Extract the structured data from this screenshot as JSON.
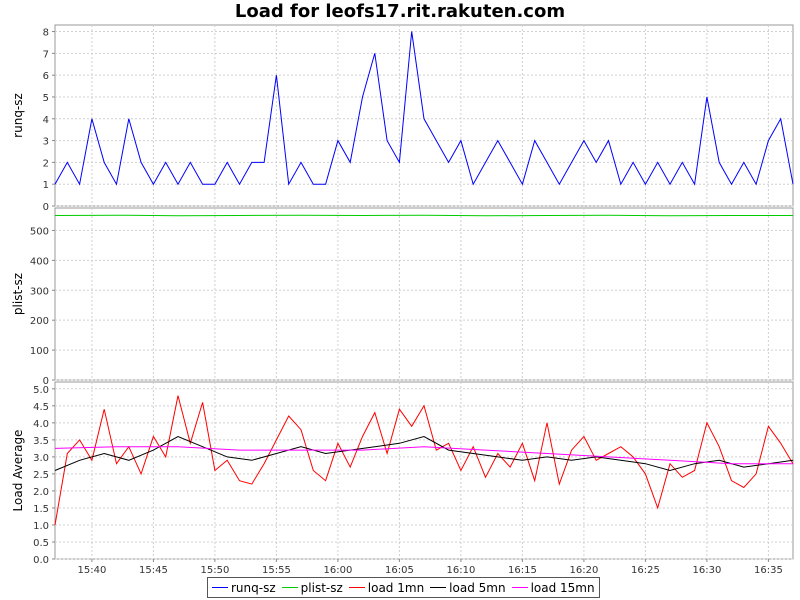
{
  "chart_data": {
    "type": "line",
    "title": "Load for leofs17.rit.rakuten.com",
    "x_ticks": [
      "15:40",
      "15:45",
      "15:50",
      "15:55",
      "16:00",
      "16:05",
      "16:10",
      "16:15",
      "16:20",
      "16:25",
      "16:30",
      "16:35"
    ],
    "x_range": [
      "15:37",
      "16:37"
    ],
    "grid": true,
    "legend_position": "bottom",
    "panels": [
      {
        "ylabel": "runq-sz",
        "ylim": [
          0,
          8.3
        ],
        "yticks": [
          0,
          1,
          2,
          3,
          4,
          5,
          6,
          7,
          8
        ],
        "series": [
          {
            "name": "runq-sz",
            "color": "#0000ff",
            "x": [
              "15:37",
              "15:38",
              "15:39",
              "15:40",
              "15:41",
              "15:42",
              "15:43",
              "15:44",
              "15:45",
              "15:46",
              "15:47",
              "15:48",
              "15:49",
              "15:50",
              "15:51",
              "15:52",
              "15:53",
              "15:54",
              "15:55",
              "15:56",
              "15:57",
              "15:58",
              "15:59",
              "16:00",
              "16:01",
              "16:02",
              "16:03",
              "16:04",
              "16:05",
              "16:06",
              "16:07",
              "16:08",
              "16:09",
              "16:10",
              "16:11",
              "16:12",
              "16:13",
              "16:14",
              "16:15",
              "16:16",
              "16:17",
              "16:18",
              "16:19",
              "16:20",
              "16:21",
              "16:22",
              "16:23",
              "16:24",
              "16:25",
              "16:26",
              "16:27",
              "16:28",
              "16:29",
              "16:30",
              "16:31",
              "16:32",
              "16:33",
              "16:34",
              "16:35",
              "16:36",
              "16:37"
            ],
            "values": [
              1,
              2,
              1,
              4,
              2,
              1,
              4,
              2,
              1,
              2,
              1,
              2,
              1,
              1,
              2,
              1,
              2,
              2,
              6,
              1,
              2,
              1,
              1,
              3,
              2,
              5,
              7,
              3,
              2,
              8,
              4,
              3,
              2,
              3,
              1,
              2,
              3,
              2,
              1,
              3,
              2,
              1,
              2,
              3,
              2,
              3,
              1,
              2,
              1,
              2,
              1,
              2,
              1,
              5,
              2,
              1,
              2,
              1,
              3,
              4,
              1
            ]
          }
        ]
      },
      {
        "ylabel": "plist-sz",
        "ylim": [
          0,
          575
        ],
        "yticks": [
          0,
          100,
          200,
          300,
          400,
          500
        ],
        "series": [
          {
            "name": "plist-sz",
            "color": "#00cc00",
            "x": [
              "15:37",
              "15:42",
              "15:47",
              "15:52",
              "15:57",
              "16:02",
              "16:07",
              "16:12",
              "16:17",
              "16:22",
              "16:27",
              "16:32",
              "16:37"
            ],
            "values": [
              550,
              551,
              549,
              550,
              551,
              550,
              551,
              549,
              550,
              551,
              549,
              550,
              550
            ]
          }
        ]
      },
      {
        "ylabel": "Load Average",
        "ylim": [
          0,
          5.2
        ],
        "yticks": [
          "0.0",
          "0.5",
          "1.0",
          "1.5",
          "2.0",
          "2.5",
          "3.0",
          "3.5",
          "4.0",
          "4.5",
          "5.0"
        ],
        "series": [
          {
            "name": "load 1mn",
            "color": "#ff0000",
            "x": [
              "15:37",
              "15:38",
              "15:39",
              "15:40",
              "15:41",
              "15:42",
              "15:43",
              "15:44",
              "15:45",
              "15:46",
              "15:47",
              "15:48",
              "15:49",
              "15:50",
              "15:51",
              "15:52",
              "15:53",
              "15:54",
              "15:55",
              "15:56",
              "15:57",
              "15:58",
              "15:59",
              "16:00",
              "16:01",
              "16:02",
              "16:03",
              "16:04",
              "16:05",
              "16:06",
              "16:07",
              "16:08",
              "16:09",
              "16:10",
              "16:11",
              "16:12",
              "16:13",
              "16:14",
              "16:15",
              "16:16",
              "16:17",
              "16:18",
              "16:19",
              "16:20",
              "16:21",
              "16:22",
              "16:23",
              "16:24",
              "16:25",
              "16:26",
              "16:27",
              "16:28",
              "16:29",
              "16:30",
              "16:31",
              "16:32",
              "16:33",
              "16:34",
              "16:35",
              "16:36",
              "16:37"
            ],
            "values": [
              1.0,
              3.1,
              3.5,
              2.9,
              4.4,
              2.8,
              3.3,
              2.5,
              3.6,
              3.0,
              4.8,
              3.4,
              4.6,
              2.6,
              2.9,
              2.3,
              2.2,
              2.8,
              3.5,
              4.2,
              3.8,
              2.6,
              2.3,
              3.4,
              2.7,
              3.6,
              4.3,
              3.1,
              4.4,
              3.9,
              4.5,
              3.2,
              3.4,
              2.6,
              3.3,
              2.4,
              3.1,
              2.7,
              3.4,
              2.3,
              4.0,
              2.2,
              3.2,
              3.6,
              2.9,
              3.1,
              3.3,
              3.0,
              2.5,
              1.5,
              2.8,
              2.4,
              2.6,
              4.0,
              3.3,
              2.3,
              2.1,
              2.5,
              3.9,
              3.4,
              2.8
            ]
          },
          {
            "name": "load 5mn",
            "color": "#000000",
            "x": [
              "15:37",
              "15:39",
              "15:41",
              "15:43",
              "15:45",
              "15:47",
              "15:49",
              "15:51",
              "15:53",
              "15:55",
              "15:57",
              "15:59",
              "16:01",
              "16:03",
              "16:05",
              "16:07",
              "16:09",
              "16:11",
              "16:13",
              "16:15",
              "16:17",
              "16:19",
              "16:21",
              "16:23",
              "16:25",
              "16:27",
              "16:29",
              "16:31",
              "16:33",
              "16:35",
              "16:37"
            ],
            "values": [
              2.6,
              2.9,
              3.1,
              2.9,
              3.2,
              3.6,
              3.3,
              3.0,
              2.9,
              3.1,
              3.3,
              3.1,
              3.2,
              3.3,
              3.4,
              3.6,
              3.2,
              3.1,
              3.0,
              2.9,
              3.0,
              2.9,
              3.0,
              2.9,
              2.8,
              2.6,
              2.8,
              2.9,
              2.7,
              2.8,
              2.9
            ]
          },
          {
            "name": "load 15mn",
            "color": "#ff00ff",
            "x": [
              "15:37",
              "15:42",
              "15:47",
              "15:52",
              "15:57",
              "16:02",
              "16:07",
              "16:12",
              "16:17",
              "16:22",
              "16:27",
              "16:32",
              "16:37"
            ],
            "values": [
              3.25,
              3.3,
              3.3,
              3.2,
              3.2,
              3.2,
              3.3,
              3.2,
              3.1,
              3.0,
              2.9,
              2.8,
              2.8
            ]
          }
        ]
      }
    ]
  }
}
